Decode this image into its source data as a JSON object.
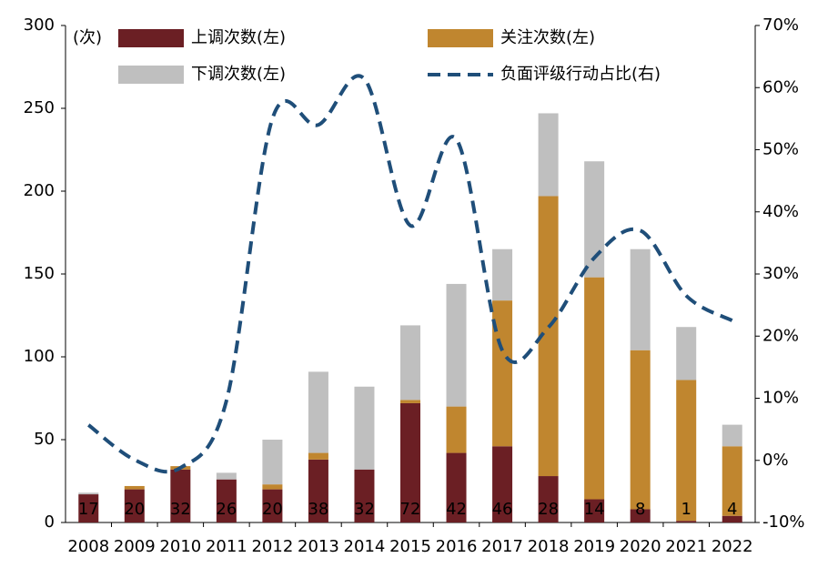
{
  "chart_data": {
    "type": "bar",
    "stacked": true,
    "y_unit": "(次)",
    "categories": [
      "2008",
      "2009",
      "2010",
      "2011",
      "2012",
      "2013",
      "2014",
      "2015",
      "2016",
      "2017",
      "2018",
      "2019",
      "2020",
      "2021",
      "2022"
    ],
    "series": [
      {
        "name": "上调次数(左)",
        "color": "#6b1f24",
        "values": [
          17,
          20,
          32,
          26,
          20,
          38,
          32,
          72,
          42,
          46,
          28,
          14,
          8,
          1,
          4
        ],
        "show_values": true
      },
      {
        "name": "关注次数(左)",
        "color": "#c0862f",
        "values": [
          0,
          2,
          2,
          0,
          3,
          4,
          0,
          2,
          28,
          88,
          169,
          134,
          96,
          85,
          42
        ]
      },
      {
        "name": "下调次数(左)",
        "color": "#bfbfbf",
        "values": [
          1,
          0,
          0,
          4,
          27,
          49,
          50,
          45,
          74,
          31,
          50,
          70,
          61,
          32,
          13
        ]
      },
      {
        "name": "负面评级行动占比(右)",
        "type": "line",
        "axis": "y2",
        "color": "#1f4e79",
        "dashed": true,
        "smooth": true,
        "values": [
          5.7,
          0.1,
          -1.2,
          9.6,
          55,
          54,
          61.4,
          37.8,
          51.7,
          17.7,
          21.4,
          32.6,
          37,
          26.5,
          22.5
        ]
      }
    ],
    "ylim": [
      0,
      300
    ],
    "yticks": [
      0,
      50,
      100,
      150,
      200,
      250,
      300
    ],
    "y2lim": [
      -10,
      70
    ],
    "y2ticks": [
      {
        "value": -10,
        "label": "-10%"
      },
      {
        "value": 0,
        "label": "0%"
      },
      {
        "value": 10,
        "label": "10%"
      },
      {
        "value": 20,
        "label": "20%"
      },
      {
        "value": 30,
        "label": "30%"
      },
      {
        "value": 40,
        "label": "40%"
      },
      {
        "value": 50,
        "label": "50%"
      },
      {
        "value": 60,
        "label": "60%"
      },
      {
        "value": 70,
        "label": "70%"
      }
    ],
    "grid": false
  }
}
